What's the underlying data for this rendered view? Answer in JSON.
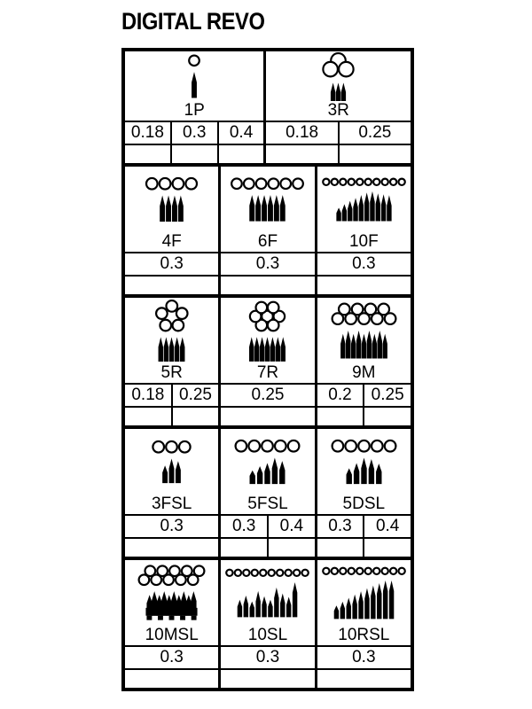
{
  "title": "DIGITAL REVO",
  "colors": {
    "ink": "#000000",
    "background": "#ffffff"
  },
  "sections": [
    {
      "cells": [
        {
          "label": "1P",
          "sizes": [
            "0.18",
            "0.3",
            "0.4"
          ],
          "width_pct": 48.6,
          "art": {
            "circles": {
              "arrangement": "row",
              "count": 1,
              "r": 7
            },
            "needles": {
              "heights": [
                1
              ],
              "w": 6,
              "sp": 8,
              "maxH": 30
            }
          }
        },
        {
          "label": "3R",
          "sizes": [
            "0.18",
            "0.25"
          ],
          "width_pct": 51.4,
          "art": {
            "circles": {
              "arrangement": "tri3",
              "r": 9.5
            },
            "needles": {
              "heights": [
                1,
                1,
                1
              ],
              "w": 5.5,
              "sp": 6,
              "maxH": 27
            }
          }
        }
      ]
    },
    {
      "cells": [
        {
          "label": "4F",
          "sizes": [
            "0.3"
          ],
          "art": {
            "circles": {
              "arrangement": "row",
              "count": 4,
              "r": 7.5
            },
            "needles": {
              "heights": [
                1,
                1,
                1,
                1
              ],
              "w": 6,
              "sp": 7,
              "maxH": 30
            }
          }
        },
        {
          "label": "6F",
          "sizes": [
            "0.3"
          ],
          "art": {
            "circles": {
              "arrangement": "row",
              "count": 6,
              "r": 7
            },
            "needles": {
              "heights": [
                1,
                1,
                1,
                1,
                1,
                1
              ],
              "w": 6,
              "sp": 7,
              "maxH": 30
            }
          }
        },
        {
          "label": "10F",
          "sizes": [
            "0.3"
          ],
          "art": {
            "circles": {
              "arrangement": "row",
              "count": 10,
              "r": 4.8
            },
            "needles": {
              "heights": [
                0.45,
                0.57,
                0.68,
                0.78,
                0.88,
                0.96,
                1,
                0.93,
                0.9,
                0.87
              ],
              "w": 5.5,
              "sp": 6.4,
              "maxH": 34
            }
          }
        }
      ]
    },
    {
      "cells": [
        {
          "label": "5R",
          "sizes": [
            "0.18",
            "0.25"
          ],
          "art": {
            "circles": {
              "arrangement": "ring5",
              "r": 7.5
            },
            "needles": {
              "heights": [
                1,
                1,
                1,
                1,
                1
              ],
              "w": 5.5,
              "sp": 6.2,
              "maxH": 28
            }
          }
        },
        {
          "label": "7R",
          "sizes": [
            "0.25"
          ],
          "art": {
            "circles": {
              "arrangement": "hex7",
              "r": 7.5
            },
            "needles": {
              "heights": [
                1,
                1,
                1,
                1,
                1,
                1,
                1
              ],
              "w": 5.5,
              "sp": 6,
              "maxH": 28
            }
          }
        },
        {
          "label": "9M",
          "sizes": [
            "0.2",
            "0.25"
          ],
          "art": {
            "circles": {
              "arrangement": "stack",
              "rows": [
                4,
                5
              ],
              "r": 7.5
            },
            "needles": {
              "heights": [
                0.88,
                1,
                0.88,
                1,
                0.88,
                1,
                0.88,
                1,
                0.88
              ],
              "w": 5.5,
              "sp": 6,
              "maxH": 32
            }
          }
        }
      ]
    },
    {
      "cells": [
        {
          "label": "3FSL",
          "sizes": [
            "0.3"
          ],
          "art": {
            "circles": {
              "arrangement": "row",
              "count": 3,
              "r": 7.5
            },
            "needles": {
              "heights": [
                0.72,
                1,
                0.9
              ],
              "w": 6,
              "sp": 7.5,
              "maxH": 28
            }
          }
        },
        {
          "label": "5FSL",
          "sizes": [
            "0.3",
            "0.4"
          ],
          "art": {
            "circles": {
              "arrangement": "row",
              "count": 5,
              "r": 7.5
            },
            "needles": {
              "heights": [
                0.52,
                0.68,
                0.8,
                1,
                0.88
              ],
              "w": 6.5,
              "sp": 8.5,
              "maxH": 30
            }
          }
        },
        {
          "label": "5DSL",
          "sizes": [
            "0.3",
            "0.4"
          ],
          "art": {
            "circles": {
              "arrangement": "row",
              "count": 5,
              "r": 7.5
            },
            "needles": {
              "heights": [
                0.6,
                0.8,
                1,
                0.95,
                0.78
              ],
              "w": 6.5,
              "sp": 8.5,
              "maxH": 30
            }
          }
        }
      ]
    },
    {
      "cells": [
        {
          "label": "10MSL",
          "sizes": [
            "0.3"
          ],
          "art": {
            "circles": {
              "arrangement": "stack",
              "rows": [
                5,
                5
              ],
              "r": 7
            },
            "needles": {
              "heights": [
                0.85,
                1,
                0.85,
                1,
                0.85,
                1,
                0.85,
                1,
                0.85,
                1
              ],
              "w": 6.5,
              "sp": 5.6,
              "maxH": 28,
              "block": true,
              "feet": 5
            }
          }
        },
        {
          "label": "10SL",
          "sizes": [
            "0.3"
          ],
          "art": {
            "circles": {
              "arrangement": "row",
              "count": 10,
              "r": 4.8
            },
            "needles": {
              "heights": [
                0.5,
                0.62,
                0.45,
                0.75,
                0.6,
                0.5,
                0.85,
                0.68,
                0.58,
                1
              ],
              "w": 5.5,
              "sp": 7,
              "maxH": 40
            }
          }
        },
        {
          "label": "10RSL",
          "sizes": [
            "0.3"
          ],
          "art": {
            "circles": {
              "arrangement": "row",
              "count": 10,
              "r": 4.8
            },
            "needles": {
              "heights": [
                0.35,
                0.45,
                0.55,
                0.64,
                0.72,
                0.8,
                0.87,
                0.93,
                1,
                1
              ],
              "w": 5.5,
              "sp": 7,
              "maxH": 44
            }
          }
        }
      ]
    }
  ]
}
